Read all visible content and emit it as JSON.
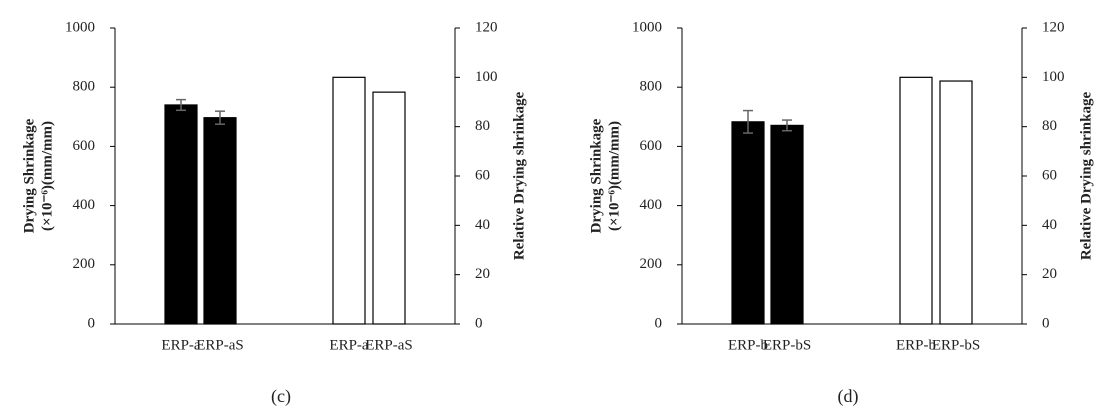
{
  "chart_data": [
    {
      "type": "bar",
      "caption": "(c)",
      "ylabel": [
        "Drying Shrinkage",
        "(×10⁻⁶)(mm/mm)"
      ],
      "y2label": "Relative Drying shrinkage",
      "categories": [
        "ERP-a",
        "ERP-aS",
        "ERP-a",
        "ERP-aS"
      ],
      "series": [
        {
          "color": "#000000",
          "values": [
            740,
            697,
            null,
            null
          ],
          "errors": [
            18,
            22,
            null,
            null
          ]
        },
        {
          "color": "#ffffff",
          "axis": "y2",
          "values": [
            null,
            null,
            100,
            94
          ]
        }
      ],
      "ylim": [
        0,
        1000
      ],
      "yticks": [
        0,
        200,
        400,
        600,
        800,
        1000
      ],
      "y2lim": [
        0,
        120
      ],
      "y2ticks": [
        0,
        20,
        40,
        60,
        80,
        100,
        120
      ]
    },
    {
      "type": "bar",
      "caption": "(d)",
      "ylabel": [
        "Drying Shrinkage",
        "(×10⁻⁶)(mm/mm)"
      ],
      "y2label": "Relative Drying shrinkage",
      "categories": [
        "ERP-b",
        "ERP-bS",
        "ERP-b",
        "ERP-bS"
      ],
      "series": [
        {
          "color": "#000000",
          "values": [
            683,
            671,
            null,
            null
          ],
          "errors": [
            38,
            18,
            null,
            null
          ]
        },
        {
          "color": "#ffffff",
          "axis": "y2",
          "values": [
            null,
            null,
            100,
            98.5
          ]
        }
      ],
      "ylim": [
        0,
        1000
      ],
      "yticks": [
        0,
        200,
        400,
        600,
        800,
        1000
      ],
      "y2lim": [
        0,
        120
      ],
      "y2ticks": [
        0,
        20,
        40,
        60,
        80,
        100,
        120
      ]
    }
  ]
}
